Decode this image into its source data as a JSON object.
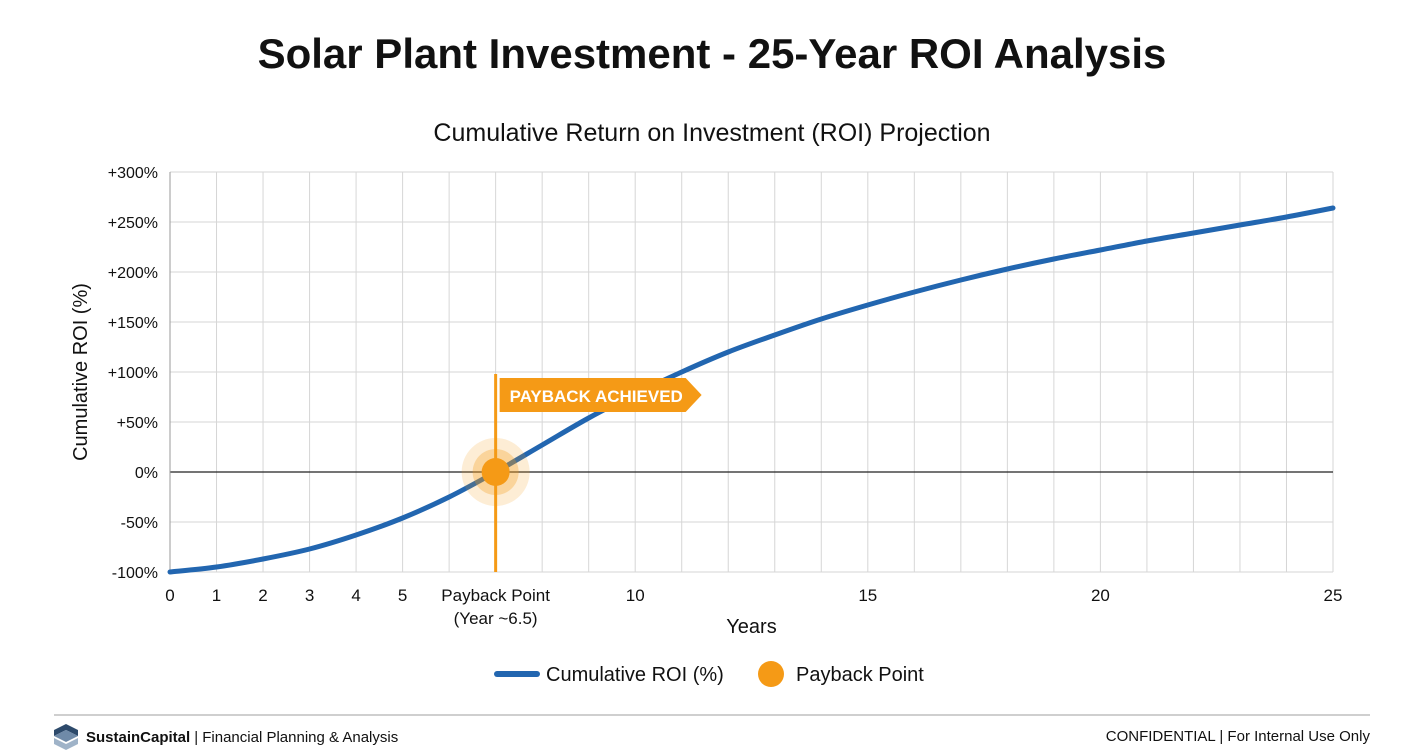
{
  "title": "Solar Plant Investment - 25-Year ROI Analysis",
  "chart_data": {
    "type": "line",
    "title": "Cumulative Return on Investment (ROI) Projection",
    "xlabel": "Years",
    "ylabel": "Cumulative ROI (%)",
    "xlim": [
      0,
      25
    ],
    "ylim": [
      -100,
      300
    ],
    "grid": true,
    "x_ticks": [
      {
        "value": 0,
        "label": "0"
      },
      {
        "value": 1,
        "label": "1"
      },
      {
        "value": 2,
        "label": "2"
      },
      {
        "value": 3,
        "label": "3"
      },
      {
        "value": 4,
        "label": "4"
      },
      {
        "value": 5,
        "label": "5"
      },
      {
        "value": 10,
        "label": "10"
      },
      {
        "value": 15,
        "label": "15"
      },
      {
        "value": 20,
        "label": "20"
      },
      {
        "value": 25,
        "label": "25"
      }
    ],
    "y_ticks": [
      {
        "value": 300,
        "label": "+300%"
      },
      {
        "value": 250,
        "label": "+250%"
      },
      {
        "value": 200,
        "label": "+200%"
      },
      {
        "value": 150,
        "label": "+150%"
      },
      {
        "value": 100,
        "label": "+100%"
      },
      {
        "value": 50,
        "label": "+50%"
      },
      {
        "value": 0,
        "label": "0%"
      },
      {
        "value": -50,
        "label": "-50%"
      },
      {
        "value": -100,
        "label": "-100%"
      }
    ],
    "series": [
      {
        "name": "Cumulative ROI (%)",
        "color": "#2266b0",
        "x": [
          0,
          1,
          2,
          3,
          4,
          5,
          6,
          7,
          8,
          9,
          10,
          11,
          12,
          13,
          14,
          15,
          16,
          17,
          18,
          19,
          20,
          21,
          22,
          23,
          24,
          25
        ],
        "y": [
          -100,
          -95,
          -87,
          -77,
          -63,
          -46,
          -25,
          0,
          27,
          54,
          78,
          100,
          120,
          137,
          153,
          167,
          180,
          192,
          203,
          213,
          222,
          231,
          239,
          247,
          255,
          264
        ]
      }
    ],
    "payback_point": {
      "name": "Payback Point",
      "x": 7,
      "y": 0,
      "color": "#f59a16",
      "axis_label_line1": "Payback Point",
      "axis_label_line2": "(Year ~6.5)",
      "annotation": "PAYBACK ACHIEVED"
    },
    "legend": {
      "placement": "bottom",
      "entries": [
        "Cumulative ROI (%)",
        "Payback Point"
      ]
    }
  },
  "footer": {
    "brand": "SustainCapital",
    "subtitle": "| Financial Planning & Analysis",
    "right": "CONFIDENTIAL | For Internal Use Only"
  }
}
